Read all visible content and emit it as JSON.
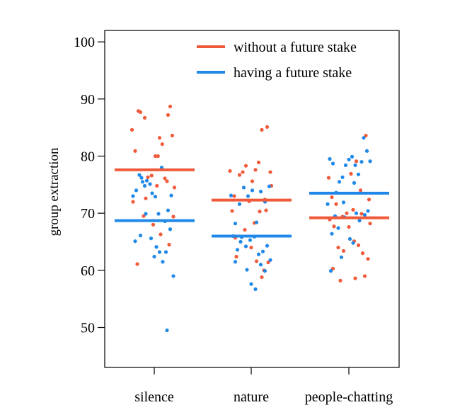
{
  "chart_data": {
    "type": "scatter",
    "title": "",
    "xlabel": "",
    "ylabel": "group extraction",
    "categories": [
      "silence",
      "nature",
      "people-chatting"
    ],
    "ylim": [
      43,
      102
    ],
    "yticks": [
      50,
      60,
      70,
      80,
      90,
      100
    ],
    "grid": false,
    "legend_position": "top-right",
    "series": [
      {
        "name": "without a future stake",
        "color": "#f05a3a",
        "means": [
          77.6,
          72.3,
          69.2
        ],
        "points": [
          [
            [
              -0.42,
              84.6
            ],
            [
              -0.36,
              80.9
            ],
            [
              -0.3,
              87.9
            ],
            [
              -0.26,
              87.7
            ],
            [
              -0.18,
              86.7
            ],
            [
              -0.16,
              72.6
            ],
            [
              -0.12,
              76.3
            ],
            [
              -0.05,
              76.6
            ],
            [
              0.02,
              80.0
            ],
            [
              0.07,
              80.0
            ],
            [
              0.1,
              83.2
            ],
            [
              0.15,
              82.1
            ],
            [
              0.2,
              76.1
            ],
            [
              0.26,
              87.2
            ],
            [
              0.3,
              88.7
            ],
            [
              0.34,
              83.6
            ],
            [
              0.38,
              74.5
            ],
            [
              0.36,
              69.4
            ],
            [
              0.28,
              64.5
            ],
            [
              -0.4,
              72.0
            ],
            [
              -0.2,
              69.5
            ],
            [
              0.05,
              74.8
            ],
            [
              0.24,
              75.6
            ],
            [
              -0.32,
              61.1
            ],
            [
              -0.02,
              68.0
            ],
            [
              0.12,
              66.3
            ]
          ],
          [
            [
              -0.4,
              77.4
            ],
            [
              -0.32,
              73.0
            ],
            [
              -0.22,
              76.7
            ],
            [
              -0.16,
              77.2
            ],
            [
              -0.1,
              78.3
            ],
            [
              -0.04,
              72.1
            ],
            [
              0.02,
              75.6
            ],
            [
              0.08,
              77.6
            ],
            [
              0.14,
              78.9
            ],
            [
              0.2,
              84.6
            ],
            [
              0.3,
              85.1
            ],
            [
              0.36,
              77.2
            ],
            [
              0.38,
              74.8
            ],
            [
              -0.36,
              70.4
            ],
            [
              -0.12,
              67.1
            ],
            [
              0.06,
              68.3
            ],
            [
              0.16,
              70.3
            ],
            [
              0.26,
              72.4
            ],
            [
              -0.3,
              65.7
            ],
            [
              0.0,
              64.0
            ],
            [
              0.1,
              61.6
            ],
            [
              0.24,
              60.0
            ],
            [
              0.32,
              61.4
            ],
            [
              0.2,
              58.8
            ],
            [
              -0.28,
              62.4
            ],
            [
              0.28,
              70.5
            ]
          ],
          [
            [
              -0.38,
              76.2
            ],
            [
              -0.32,
              72.8
            ],
            [
              -0.24,
              71.6
            ],
            [
              -0.12,
              69.4
            ],
            [
              -0.04,
              70.0
            ],
            [
              0.04,
              76.9
            ],
            [
              0.14,
              79.1
            ],
            [
              0.22,
              74.0
            ],
            [
              0.32,
              83.6
            ],
            [
              0.38,
              72.4
            ],
            [
              0.4,
              68.2
            ],
            [
              -0.36,
              68.9
            ],
            [
              -0.28,
              67.7
            ],
            [
              -0.2,
              64.0
            ],
            [
              -0.1,
              63.4
            ],
            [
              0.0,
              67.6
            ],
            [
              0.1,
              65.1
            ],
            [
              0.18,
              64.4
            ],
            [
              0.26,
              63.0
            ],
            [
              0.3,
              59.0
            ],
            [
              -0.16,
              58.2
            ],
            [
              0.36,
              62.0
            ],
            [
              0.08,
              70.6
            ],
            [
              -0.3,
              60.3
            ],
            [
              0.24,
              69.9
            ],
            [
              0.12,
              58.6
            ]
          ]
        ]
      },
      {
        "name": "having a future stake",
        "color": "#1f88e8",
        "means": [
          68.7,
          66.0,
          73.5
        ],
        "points": [
          [
            [
              -0.4,
              73.0
            ],
            [
              -0.34,
              74.0
            ],
            [
              -0.28,
              76.7
            ],
            [
              -0.22,
              75.5
            ],
            [
              -0.18,
              74.8
            ],
            [
              -0.14,
              75.7
            ],
            [
              -0.08,
              75.1
            ],
            [
              -0.04,
              73.5
            ],
            [
              0.02,
              72.9
            ],
            [
              0.08,
              69.9
            ],
            [
              0.14,
              78.0
            ],
            [
              0.2,
              68.6
            ],
            [
              0.26,
              70.5
            ],
            [
              0.32,
              73.1
            ],
            [
              -0.36,
              65.1
            ],
            [
              -0.26,
              66.1
            ],
            [
              -0.16,
              69.9
            ],
            [
              -0.06,
              65.6
            ],
            [
              0.04,
              64.1
            ],
            [
              0.1,
              63.2
            ],
            [
              0.16,
              61.5
            ],
            [
              0.22,
              63.2
            ],
            [
              0.3,
              67.2
            ],
            [
              0.36,
              59.0
            ],
            [
              0.0,
              62.4
            ],
            [
              -0.24,
              76.2
            ],
            [
              0.24,
              49.5
            ]
          ],
          [
            [
              -0.38,
              73.1
            ],
            [
              -0.3,
              68.2
            ],
            [
              -0.22,
              71.6
            ],
            [
              -0.14,
              74.5
            ],
            [
              -0.06,
              73.0
            ],
            [
              0.02,
              74.0
            ],
            [
              0.1,
              68.4
            ],
            [
              0.18,
              73.8
            ],
            [
              0.26,
              72.0
            ],
            [
              0.34,
              74.7
            ],
            [
              -0.34,
              66.0
            ],
            [
              -0.26,
              63.6
            ],
            [
              -0.18,
              65.8
            ],
            [
              -0.1,
              64.2
            ],
            [
              -0.02,
              65.3
            ],
            [
              0.06,
              65.9
            ],
            [
              0.14,
              62.8
            ],
            [
              0.22,
              63.3
            ],
            [
              0.3,
              64.3
            ],
            [
              0.36,
              61.8
            ],
            [
              -0.3,
              61.5
            ],
            [
              -0.08,
              60.1
            ],
            [
              0.0,
              57.6
            ],
            [
              0.08,
              56.7
            ],
            [
              0.18,
              61.0
            ],
            [
              0.26,
              59.9
            ],
            [
              -0.2,
              65.0
            ]
          ],
          [
            [
              -0.36,
              79.5
            ],
            [
              -0.3,
              78.7
            ],
            [
              -0.24,
              73.6
            ],
            [
              -0.18,
              75.5
            ],
            [
              -0.12,
              76.3
            ],
            [
              -0.06,
              78.4
            ],
            [
              0.0,
              79.4
            ],
            [
              0.06,
              79.9
            ],
            [
              0.12,
              78.4
            ],
            [
              0.18,
              76.8
            ],
            [
              0.24,
              79.0
            ],
            [
              0.28,
              83.2
            ],
            [
              0.34,
              80.9
            ],
            [
              0.4,
              79.1
            ],
            [
              -0.4,
              71.6
            ],
            [
              -0.32,
              66.4
            ],
            [
              -0.26,
              69.5
            ],
            [
              -0.2,
              67.4
            ],
            [
              -0.14,
              62.3
            ],
            [
              -0.08,
              69.3
            ],
            [
              0.02,
              65.5
            ],
            [
              0.08,
              64.8
            ],
            [
              0.14,
              70.0
            ],
            [
              0.2,
              68.7
            ],
            [
              0.3,
              69.7
            ],
            [
              0.36,
              70.4
            ],
            [
              -0.34,
              59.9
            ],
            [
              0.1,
              75.3
            ],
            [
              -0.1,
              71.9
            ]
          ]
        ]
      }
    ]
  }
}
